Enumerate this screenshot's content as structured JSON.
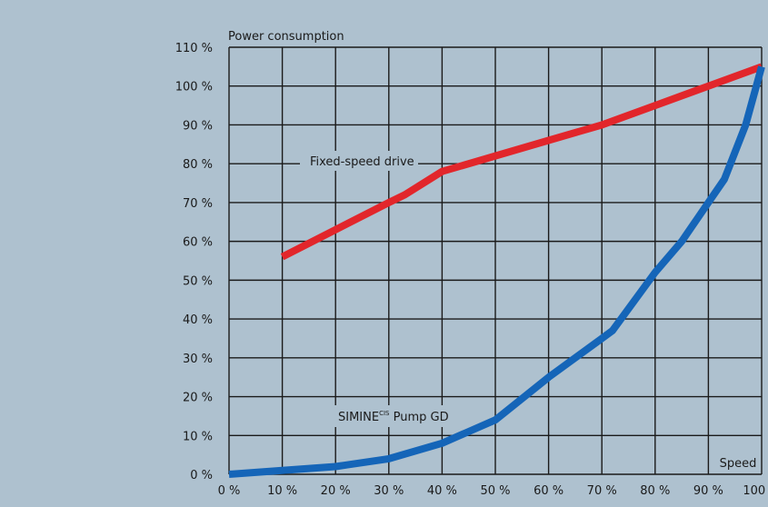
{
  "chart_data": {
    "type": "line",
    "title": "",
    "ylabel": "Power consumption",
    "xlabel": "Speed",
    "x_ticks": [
      "0 %",
      "10 %",
      "20 %",
      "30 %",
      "40 %",
      "50 %",
      "60 %",
      "70 %",
      "80 %",
      "90 %",
      "100 %"
    ],
    "y_ticks": [
      "0 %",
      "10 %",
      "20 %",
      "30 %",
      "40 %",
      "50 %",
      "60 %",
      "70 %",
      "80 %",
      "90 %",
      "100 %",
      "110 %"
    ],
    "xlim": [
      0,
      100
    ],
    "ylim": [
      0,
      110
    ],
    "grid": true,
    "series": [
      {
        "name": "Fixed-speed drive",
        "color": "#e2262b",
        "x": [
          10,
          20,
          30,
          33,
          40,
          50,
          60,
          70,
          80,
          90,
          100
        ],
        "y": [
          56,
          63,
          70,
          72,
          78,
          82,
          86,
          90,
          95,
          100,
          105
        ]
      },
      {
        "name_main": "SIMINE",
        "name_sup": "CIS",
        "name_rest": " Pump GD",
        "color": "#1565b8",
        "x": [
          0,
          10,
          20,
          30,
          40,
          45,
          50,
          60,
          70,
          72,
          80,
          85,
          90,
          93,
          97,
          100
        ],
        "y": [
          0,
          1,
          2,
          4,
          8,
          11,
          14,
          25,
          35,
          37,
          52,
          60,
          70,
          76,
          90,
          105
        ]
      }
    ]
  }
}
